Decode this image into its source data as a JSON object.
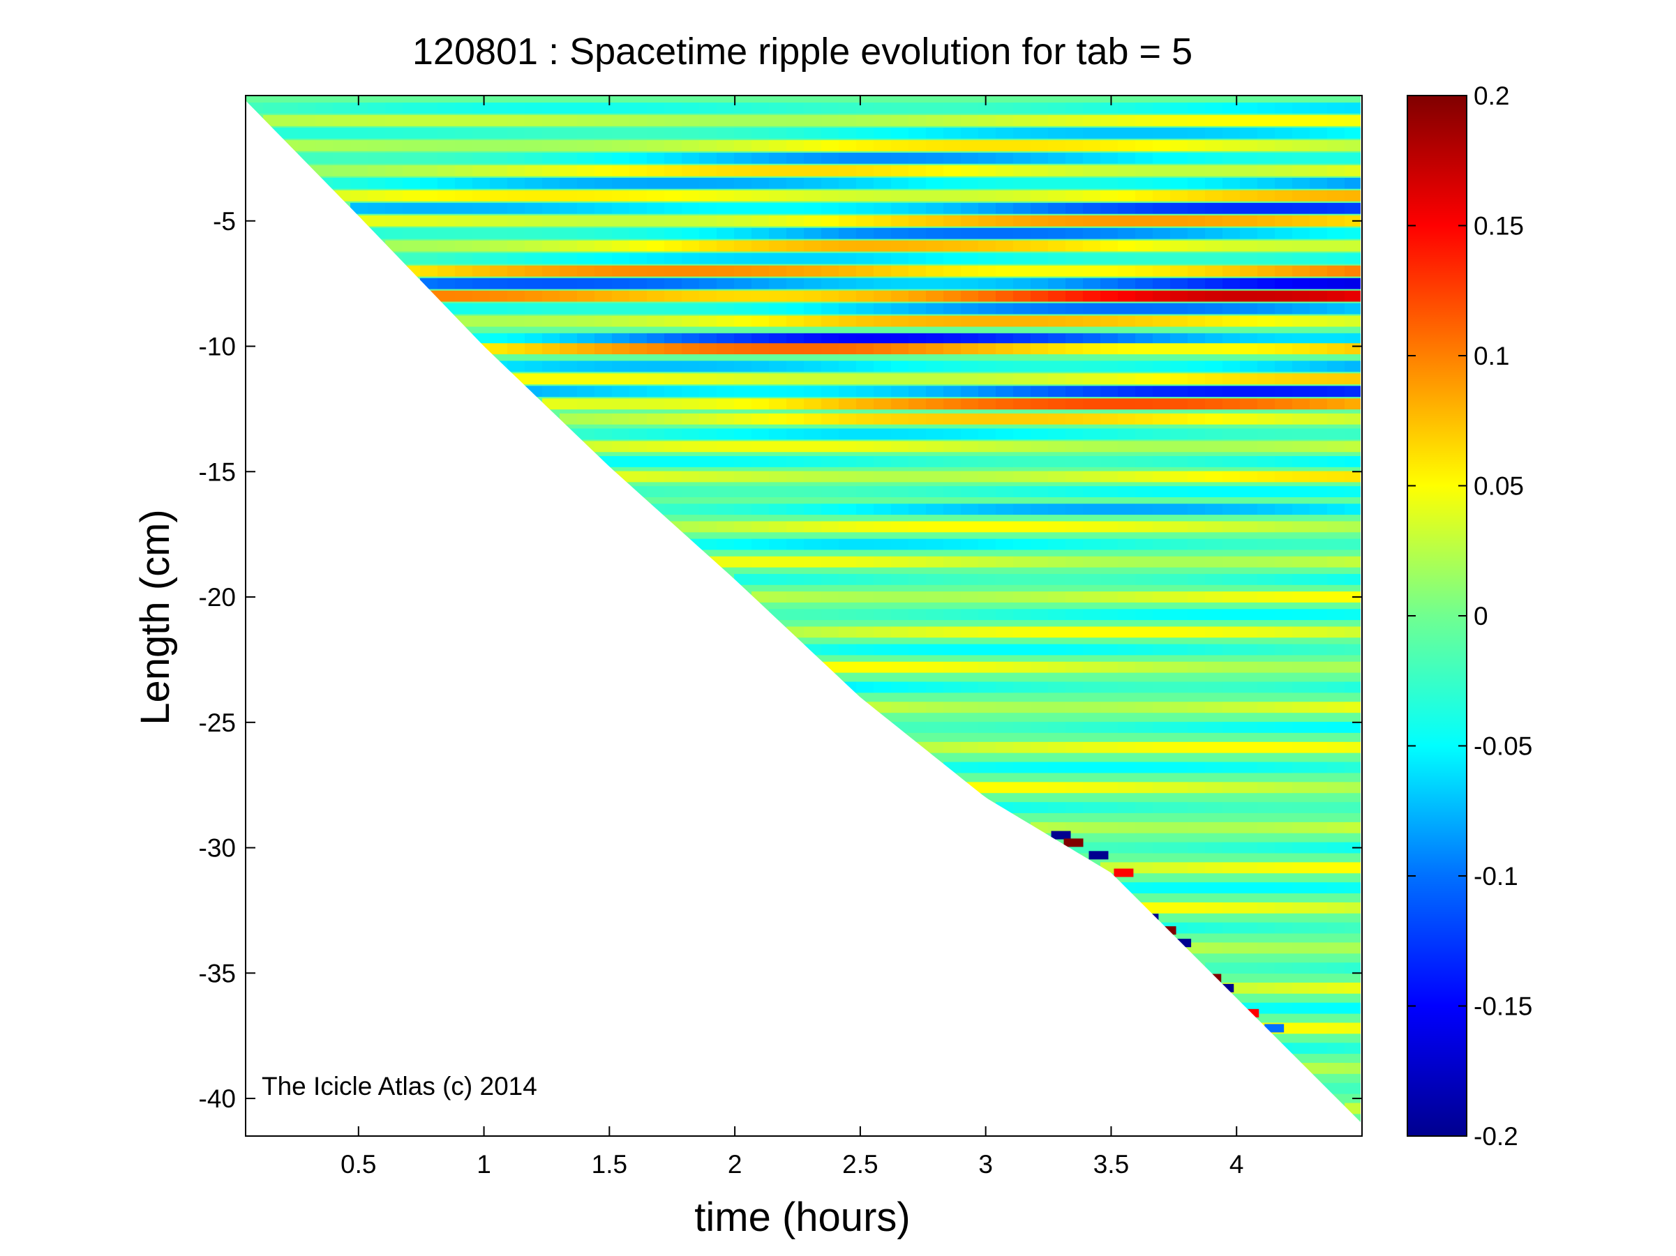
{
  "chart_data": {
    "type": "heatmap",
    "title": "120801 : Spacetime ripple evolution for tab = 5",
    "xlabel": "time (hours)",
    "ylabel": "Length (cm)",
    "xlim": [
      0.05,
      4.5
    ],
    "ylim": [
      -41.5,
      0
    ],
    "xticks": [
      0.5,
      1,
      1.5,
      2,
      2.5,
      3,
      3.5,
      4
    ],
    "xtick_labels": [
      "0.5",
      "1",
      "1.5",
      "2",
      "2.5",
      "3",
      "3.5",
      "4"
    ],
    "yticks": [
      -5,
      -10,
      -15,
      -20,
      -25,
      -30,
      -35,
      -40
    ],
    "ytick_labels": [
      "-5",
      "-10",
      "-15",
      "-20",
      "-25",
      "-30",
      "-35",
      "-40"
    ],
    "colorbar": {
      "colormap": "jet",
      "clim": [
        -0.2,
        0.2
      ],
      "ticks": [
        0.2,
        0.15,
        0.1,
        0.05,
        0,
        -0.05,
        -0.1,
        -0.15,
        -0.2
      ],
      "tick_labels": [
        "0.2",
        "0.15",
        "0.1",
        "0.05",
        "0",
        "-0.05",
        "-0.1",
        "-0.15",
        "-0.2"
      ]
    },
    "boundary": {
      "description_points": [
        [
          0.05,
          -0.2
        ],
        [
          0.5,
          -4.8
        ],
        [
          1.0,
          -10.0
        ],
        [
          1.5,
          -14.8
        ],
        [
          2.0,
          -19.3
        ],
        [
          2.5,
          -24.0
        ],
        [
          3.0,
          -28.0
        ],
        [
          3.5,
          -31.0
        ],
        [
          4.0,
          -36.0
        ],
        [
          4.5,
          -41.0
        ]
      ]
    },
    "bands": [
      {
        "y": -0.5,
        "amp": -0.06
      },
      {
        "y": -1.0,
        "amp": 0.05
      },
      {
        "y": -1.5,
        "amp": -0.07
      },
      {
        "y": -2.0,
        "amp": 0.06
      },
      {
        "y": -2.5,
        "amp": -0.09
      },
      {
        "y": -3.0,
        "amp": 0.07
      },
      {
        "y": -3.5,
        "amp": -0.1
      },
      {
        "y": -4.0,
        "amp": 0.08
      },
      {
        "y": -4.5,
        "amp": -0.13
      },
      {
        "y": -5.0,
        "amp": 0.09
      },
      {
        "y": -5.5,
        "amp": -0.1
      },
      {
        "y": -6.0,
        "amp": 0.08
      },
      {
        "y": -6.5,
        "amp": -0.07
      },
      {
        "y": -7.0,
        "amp": 0.12
      },
      {
        "y": -7.5,
        "amp": -0.16
      },
      {
        "y": -8.0,
        "amp": 0.17
      },
      {
        "y": -8.5,
        "amp": -0.1
      },
      {
        "y": -9.0,
        "amp": 0.08
      },
      {
        "y": -9.7,
        "amp": -0.15
      },
      {
        "y": -10.1,
        "amp": 0.12
      },
      {
        "y": -10.8,
        "amp": -0.09
      },
      {
        "y": -11.3,
        "amp": 0.07
      },
      {
        "y": -11.8,
        "amp": -0.14
      },
      {
        "y": -12.3,
        "amp": 0.12
      },
      {
        "y": -12.9,
        "amp": 0.07
      },
      {
        "y": -13.5,
        "amp": -0.06
      },
      {
        "y": -14.0,
        "amp": 0.05
      },
      {
        "y": -14.6,
        "amp": -0.06
      },
      {
        "y": -15.2,
        "amp": 0.06
      },
      {
        "y": -15.8,
        "amp": -0.05
      },
      {
        "y": -16.5,
        "amp": -0.08
      },
      {
        "y": -17.2,
        "amp": 0.05
      },
      {
        "y": -17.9,
        "amp": -0.06
      },
      {
        "y": -18.6,
        "amp": 0.05
      },
      {
        "y": -19.3,
        "amp": -0.05
      },
      {
        "y": -20.0,
        "amp": 0.05
      },
      {
        "y": -20.7,
        "amp": -0.05
      },
      {
        "y": -21.4,
        "amp": 0.05
      },
      {
        "y": -22.1,
        "amp": -0.05
      },
      {
        "y": -22.8,
        "amp": 0.05
      },
      {
        "y": -23.6,
        "amp": -0.06
      },
      {
        "y": -24.4,
        "amp": 0.05
      },
      {
        "y": -25.2,
        "amp": -0.05
      },
      {
        "y": -26.0,
        "amp": 0.05
      },
      {
        "y": -26.8,
        "amp": -0.05
      },
      {
        "y": -27.6,
        "amp": 0.05
      },
      {
        "y": -28.4,
        "amp": -0.05
      },
      {
        "y": -29.2,
        "amp": 0.05
      },
      {
        "y": -30.0,
        "amp": -0.05
      },
      {
        "y": -30.8,
        "amp": 0.05
      },
      {
        "y": -31.6,
        "amp": -0.05
      },
      {
        "y": -32.4,
        "amp": 0.05
      },
      {
        "y": -33.2,
        "amp": -0.05
      },
      {
        "y": -34.0,
        "amp": 0.05
      },
      {
        "y": -34.8,
        "amp": -0.05
      },
      {
        "y": -35.6,
        "amp": 0.05
      },
      {
        "y": -36.4,
        "amp": -0.05
      },
      {
        "y": -37.2,
        "amp": 0.05
      },
      {
        "y": -38.0,
        "amp": -0.05
      },
      {
        "y": -38.8,
        "amp": 0.05
      },
      {
        "y": -39.6,
        "amp": -0.05
      },
      {
        "y": -40.4,
        "amp": 0.05
      }
    ],
    "edge_ripples": [
      {
        "t": 3.3,
        "y": -29.5,
        "amp": -0.2
      },
      {
        "t": 3.35,
        "y": -29.8,
        "amp": 0.2
      },
      {
        "t": 3.45,
        "y": -30.3,
        "amp": -0.2
      },
      {
        "t": 3.55,
        "y": -31.0,
        "amp": 0.15
      },
      {
        "t": 3.65,
        "y": -32.8,
        "amp": -0.2
      },
      {
        "t": 3.72,
        "y": -33.3,
        "amp": 0.2
      },
      {
        "t": 3.78,
        "y": -33.8,
        "amp": -0.2
      },
      {
        "t": 3.9,
        "y": -35.2,
        "amp": 0.2
      },
      {
        "t": 3.95,
        "y": -35.6,
        "amp": -0.2
      },
      {
        "t": 4.05,
        "y": -36.6,
        "amp": 0.15
      },
      {
        "t": 4.15,
        "y": -37.2,
        "amp": -0.1
      }
    ]
  },
  "annotation": "The Icicle Atlas (c) 2014"
}
